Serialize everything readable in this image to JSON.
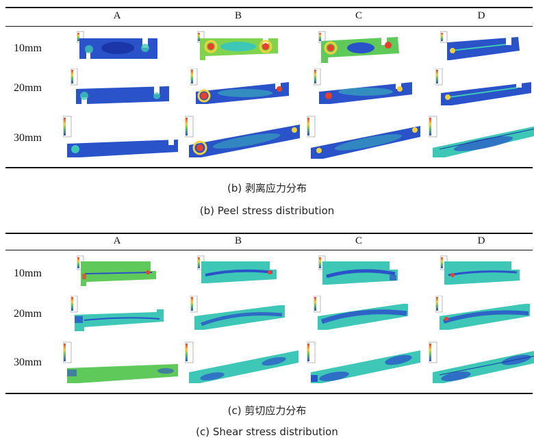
{
  "figures": [
    {
      "id": "peel",
      "columns": [
        "A",
        "B",
        "C",
        "D"
      ],
      "rows": [
        "10mm",
        "20mm",
        "30mm"
      ],
      "caption_cn": "(b) 剥离应力分布",
      "caption_en": "(b) Peel stress distribution"
    },
    {
      "id": "shear",
      "columns": [
        "A",
        "B",
        "C",
        "D"
      ],
      "rows": [
        "10mm",
        "20mm",
        "30mm"
      ],
      "caption_cn": "(c) 剪切应力分布",
      "caption_en": "(c) Shear stress distribution"
    }
  ],
  "colors": {
    "peel_base": "#2a52c9",
    "peel_deep": "#1a36a8",
    "shear_base": "#3ec7b6",
    "shear_green": "#5fc95a",
    "hotspot_red": "#e8402a",
    "hotspot_yellow": "#f2d23a",
    "rule": "#111111"
  }
}
